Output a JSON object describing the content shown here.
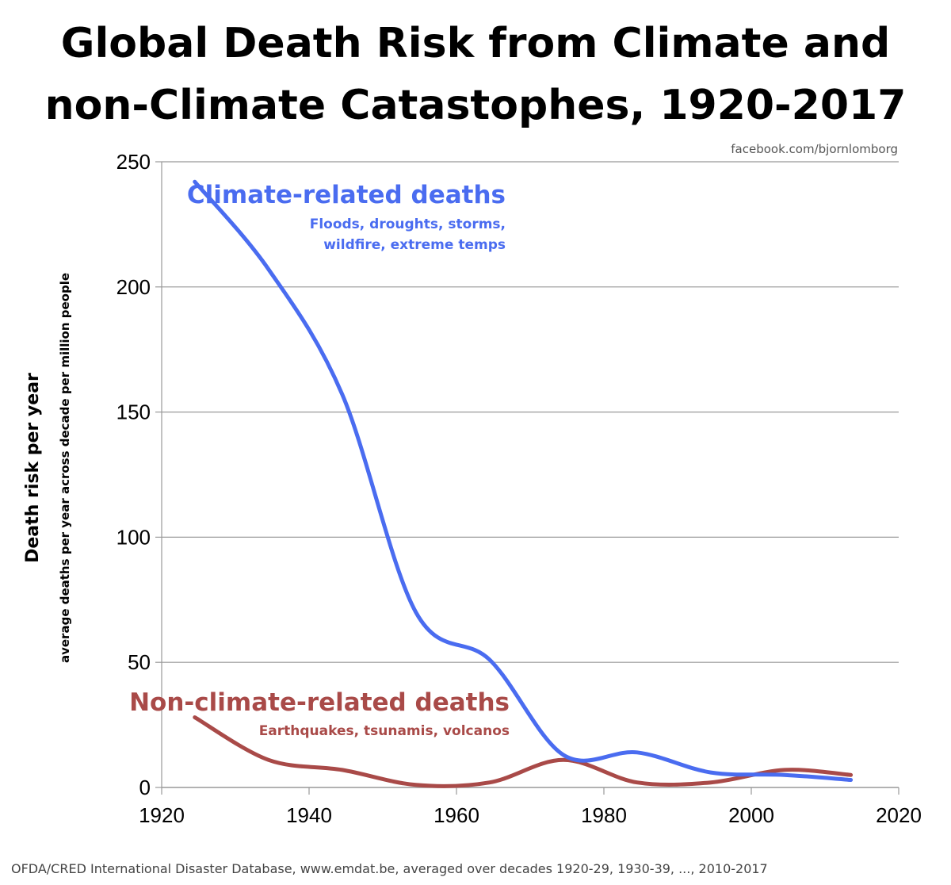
{
  "title_line1": "Global Death Risk from Climate and",
  "title_line2": "non-Climate Catastophes, 1920-2017",
  "credit": "facebook.com/bjornlomborg",
  "source": "OFDA/CRED International Disaster Database, www.emdat.be, averaged over decades 1920-29, 1930-39, ..., 2010-2017",
  "colors": {
    "climate": "#4a6cf0",
    "nonclimate": "#a94a48",
    "grid": "#999999"
  },
  "chart_data": {
    "type": "line",
    "title": "Global Death Risk from Climate and non-Climate Catastophes, 1920-2017",
    "ylabel": "Death risk per year",
    "ylabel_sub": "average deaths per year across decade per million people",
    "xlim": [
      1920,
      2020
    ],
    "ylim": [
      0,
      250
    ],
    "x_ticks": [
      1920,
      1940,
      1960,
      1980,
      2000,
      2020
    ],
    "y_ticks": [
      0,
      50,
      100,
      150,
      200,
      250
    ],
    "grid": "horizontal",
    "series": [
      {
        "name": "Climate-related deaths",
        "subtitle_line1": "Floods, droughts, storms,",
        "subtitle_line2": "wildfire, extreme temps",
        "x": [
          1924.5,
          1934.5,
          1944.5,
          1954.5,
          1964.5,
          1974.5,
          1984.5,
          1994.5,
          2004.5,
          2013.5
        ],
        "values": [
          242,
          207,
          157,
          70,
          51,
          13,
          14,
          6,
          5,
          3
        ]
      },
      {
        "name": "Non-climate-related deaths",
        "subtitle_line1": "Earthquakes, tsunamis, volcanos",
        "x": [
          1924.5,
          1934.5,
          1944.5,
          1954.5,
          1964.5,
          1974.5,
          1984.5,
          1994.5,
          2004.5,
          2013.5
        ],
        "values": [
          28,
          11,
          7,
          1,
          2,
          11,
          2,
          2,
          7,
          5
        ]
      }
    ]
  }
}
